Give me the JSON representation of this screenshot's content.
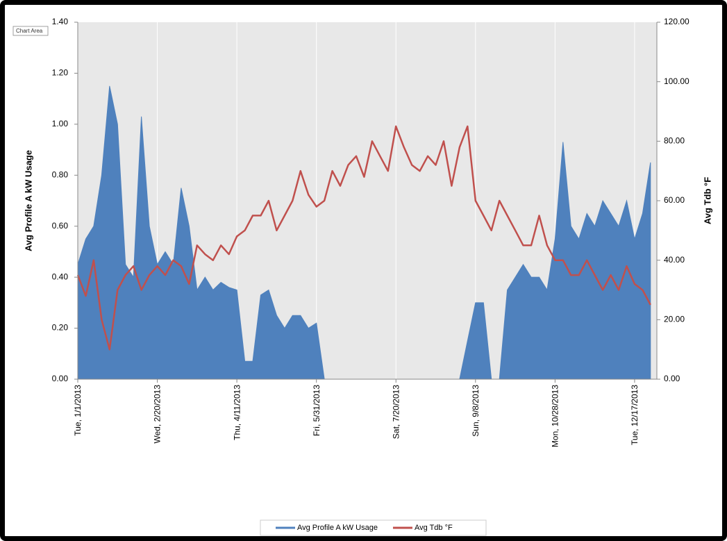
{
  "chart_data": {
    "type": "line",
    "tooltip": "Chart Area",
    "ylabel": "Avg Profile A kW Usage",
    "y2label": "Avg Tdb °F",
    "legend": "bottom",
    "grid": true,
    "x": [
      "2013-01-01",
      "2013-01-06",
      "2013-01-11",
      "2013-01-16",
      "2013-01-21",
      "2013-01-26",
      "2013-01-31",
      "2013-02-05",
      "2013-02-10",
      "2013-02-15",
      "2013-02-20",
      "2013-02-25",
      "2013-03-02",
      "2013-03-07",
      "2013-03-12",
      "2013-03-17",
      "2013-03-22",
      "2013-03-27",
      "2013-04-01",
      "2013-04-06",
      "2013-04-11",
      "2013-04-16",
      "2013-04-21",
      "2013-04-26",
      "2013-05-01",
      "2013-05-06",
      "2013-05-11",
      "2013-05-16",
      "2013-05-21",
      "2013-05-26",
      "2013-05-31",
      "2013-06-05",
      "2013-06-10",
      "2013-06-15",
      "2013-06-20",
      "2013-06-25",
      "2013-06-30",
      "2013-07-05",
      "2013-07-10",
      "2013-07-15",
      "2013-07-20",
      "2013-07-25",
      "2013-07-30",
      "2013-08-04",
      "2013-08-09",
      "2013-08-14",
      "2013-08-19",
      "2013-08-24",
      "2013-08-29",
      "2013-09-03",
      "2013-09-08",
      "2013-09-13",
      "2013-09-18",
      "2013-09-23",
      "2013-09-28",
      "2013-10-03",
      "2013-10-08",
      "2013-10-13",
      "2013-10-18",
      "2013-10-23",
      "2013-10-28",
      "2013-11-02",
      "2013-11-07",
      "2013-11-12",
      "2013-11-17",
      "2013-11-22",
      "2013-11-27",
      "2013-12-02",
      "2013-12-07",
      "2013-12-12",
      "2013-12-17",
      "2013-12-22",
      "2013-12-27"
    ],
    "xlim": [
      "2013-01-01",
      "2013-12-31"
    ],
    "xticks": [
      {
        "value": "2013-01-01",
        "label": "Tue, 1/1/2013"
      },
      {
        "value": "2013-02-20",
        "label": "Wed, 2/20/2013"
      },
      {
        "value": "2013-04-11",
        "label": "Thu, 4/11/2013"
      },
      {
        "value": "2013-05-31",
        "label": "Fri, 5/31/2013"
      },
      {
        "value": "2013-07-20",
        "label": "Sat, 7/20/2013"
      },
      {
        "value": "2013-09-08",
        "label": "Sun, 9/8/2013"
      },
      {
        "value": "2013-10-28",
        "label": "Mon, 10/28/2013"
      },
      {
        "value": "2013-12-17",
        "label": "Tue, 12/17/2013"
      }
    ],
    "ylim": [
      0,
      1.4
    ],
    "yticks": [
      {
        "value": 0,
        "label": "0.00"
      },
      {
        "value": 0.2,
        "label": "0.20"
      },
      {
        "value": 0.4,
        "label": "0.40"
      },
      {
        "value": 0.6,
        "label": "0.60"
      },
      {
        "value": 0.8,
        "label": "0.80"
      },
      {
        "value": 1,
        "label": "1.00"
      },
      {
        "value": 1.2,
        "label": "1.20"
      },
      {
        "value": 1.4,
        "label": "1.40"
      }
    ],
    "y2lim": [
      0,
      120
    ],
    "y2ticks": [
      {
        "value": 0,
        "label": "0.00"
      },
      {
        "value": 20,
        "label": "20.00"
      },
      {
        "value": 40,
        "label": "40.00"
      },
      {
        "value": 60,
        "label": "60.00"
      },
      {
        "value": 80,
        "label": "80.00"
      },
      {
        "value": 100,
        "label": "100.00"
      },
      {
        "value": 120,
        "label": "120.00"
      }
    ],
    "series": [
      {
        "name": "Avg Profile A kW Usage",
        "color": "#4f81bd",
        "kind": "area",
        "values": [
          0.45,
          0.55,
          0.6,
          0.8,
          1.15,
          1.0,
          0.45,
          0.4,
          1.03,
          0.6,
          0.45,
          0.5,
          0.45,
          0.75,
          0.6,
          0.35,
          0.4,
          0.35,
          0.38,
          0.36,
          0.35,
          0.07,
          0.07,
          0.33,
          0.35,
          0.25,
          0.2,
          0.25,
          0.25,
          0.2,
          0.22,
          0,
          0,
          0,
          0,
          0,
          0,
          0,
          0,
          0,
          0,
          0,
          0,
          0,
          0,
          0,
          0,
          0,
          0,
          0.15,
          0.3,
          0.3,
          0,
          0,
          0.35,
          0.4,
          0.45,
          0.4,
          0.4,
          0.35,
          0.55,
          0.93,
          0.6,
          0.55,
          0.65,
          0.6,
          0.7,
          0.65,
          0.6,
          0.7,
          0.55,
          0.65,
          0.85
        ]
      },
      {
        "name": "Avg Tdb °F",
        "color": "#c0504d",
        "kind": "line",
        "axis": "y2",
        "values": [
          35,
          28,
          40,
          20,
          10,
          30,
          35,
          38,
          30,
          35,
          38,
          35,
          40,
          38,
          32,
          45,
          42,
          40,
          45,
          42,
          48,
          50,
          55,
          55,
          60,
          50,
          55,
          60,
          70,
          62,
          58,
          60,
          70,
          65,
          72,
          75,
          68,
          80,
          75,
          70,
          85,
          78,
          72,
          70,
          75,
          72,
          80,
          65,
          78,
          85,
          60,
          55,
          50,
          60,
          55,
          50,
          45,
          45,
          55,
          45,
          40,
          40,
          35,
          35,
          40,
          35,
          30,
          35,
          30,
          38,
          32,
          30,
          25
        ]
      }
    ]
  }
}
